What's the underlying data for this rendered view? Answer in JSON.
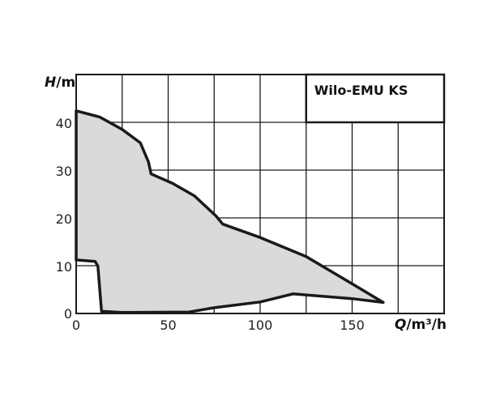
{
  "chart_data": {
    "type": "area",
    "title": "Wilo-EMU KS",
    "xlabel_var": "Q",
    "xlabel_unit": "/m³/h",
    "ylabel_var": "H",
    "ylabel_unit": "/m",
    "xlim": [
      0,
      200
    ],
    "ylim": [
      0,
      50
    ],
    "x_grid_step": 25,
    "y_grid_step": 10,
    "x_ticks": [
      "0",
      "50",
      "100",
      "150"
    ],
    "x_tick_values": [
      0,
      50,
      100,
      150
    ],
    "y_ticks": [
      "0",
      "10",
      "20",
      "30",
      "40"
    ],
    "y_tick_values": [
      0,
      10,
      20,
      30,
      40
    ],
    "grid": true,
    "legend": "top-right",
    "fill_color": "#d9dadc",
    "line_color": "#1a1a1a",
    "region_outline": [
      [
        0,
        42.4
      ],
      [
        12.8,
        41.1
      ],
      [
        25,
        38.5
      ],
      [
        34.9,
        35.7
      ],
      [
        39.3,
        31.7
      ],
      [
        40.7,
        29.2
      ],
      [
        52.5,
        27.2
      ],
      [
        64.3,
        24.6
      ],
      [
        76,
        20.4
      ],
      [
        79.7,
        18.7
      ],
      [
        100,
        15.9
      ],
      [
        125,
        11.9
      ],
      [
        150,
        6.2
      ],
      [
        166.9,
        2.3
      ],
      [
        150,
        3.1
      ],
      [
        117.9,
        4.1
      ],
      [
        100,
        2.4
      ],
      [
        75,
        1.2
      ],
      [
        61.3,
        0.3
      ],
      [
        24.6,
        0.2
      ],
      [
        13.8,
        0.45
      ],
      [
        11.8,
        9.9
      ],
      [
        10.3,
        10.9
      ],
      [
        0,
        11.2
      ]
    ]
  }
}
